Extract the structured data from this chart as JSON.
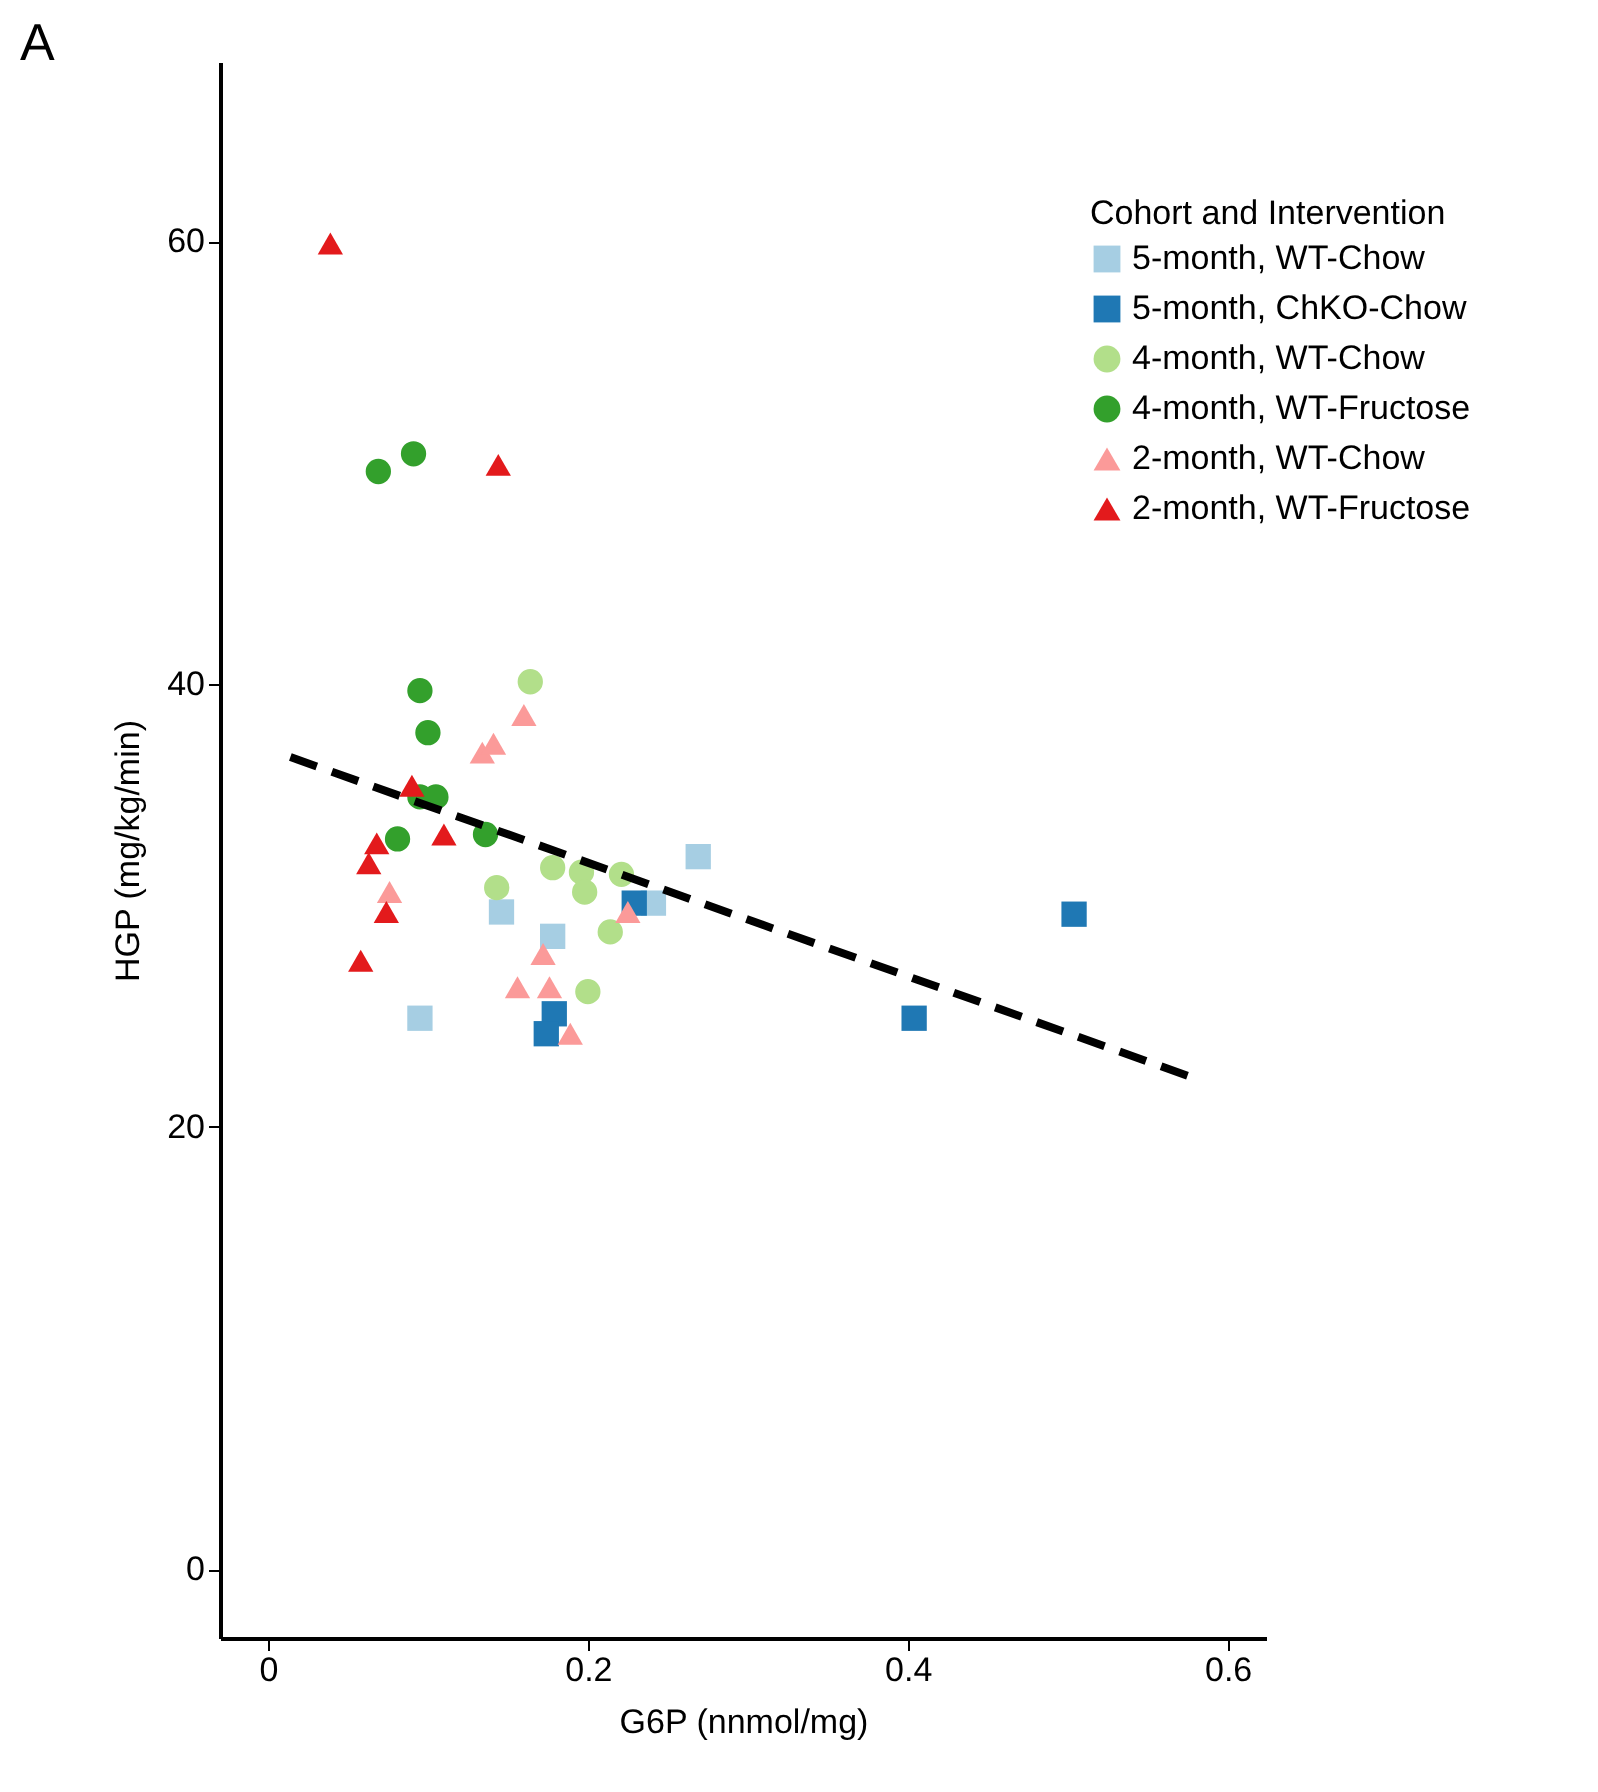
{
  "chart_data": {
    "type": "scatter",
    "xlabel": "G6P (nnmol/mg)",
    "ylabel": "HGP (mg/kg/min)",
    "legend_title": "Cohort and Intervention",
    "legend": "top right",
    "grid": false,
    "xlim": [
      -0.03,
      0.624
    ],
    "ylim": [
      -3.1,
      68.1
    ],
    "xticks": [
      0,
      0.2,
      0.4,
      0.6
    ],
    "yticks": [
      0,
      20,
      40,
      60
    ],
    "annotations": [
      "A"
    ],
    "series": [
      {
        "name": "5-month, WT-Chow",
        "color": "#a6cee3",
        "marker": "square",
        "x": [
          0.095,
          0.146,
          0.178,
          0.269,
          0.241
        ],
        "values": [
          24.9,
          29.7,
          28.6,
          32.2,
          30.1
        ]
      },
      {
        "name": "5-month, ChKO-Chow",
        "color": "#1f78b4",
        "marker": "square",
        "x": [
          0.504,
          0.404,
          0.229,
          0.179,
          0.174
        ],
        "values": [
          29.6,
          24.9,
          30.1,
          25.1,
          24.2
        ]
      },
      {
        "name": "4-month, WT-Chow",
        "color": "#b2df8a",
        "marker": "circle",
        "x": [
          0.164,
          0.143,
          0.178,
          0.196,
          0.198,
          0.221,
          0.214,
          0.2
        ],
        "values": [
          40.1,
          30.8,
          31.7,
          31.5,
          30.6,
          31.4,
          28.8,
          26.1
        ]
      },
      {
        "name": "4-month, WT-Fructose",
        "color": "#33a02c",
        "marker": "circle",
        "x": [
          0.069,
          0.091,
          0.095,
          0.1,
          0.095,
          0.105,
          0.081,
          0.136
        ],
        "values": [
          49.6,
          50.4,
          39.7,
          37.8,
          34.9,
          34.9,
          33.0,
          33.2
        ]
      },
      {
        "name": "2-month, WT-Chow",
        "color": "#fb9a99",
        "marker": "triangle",
        "x": [
          0.16,
          0.134,
          0.141,
          0.076,
          0.172,
          0.156,
          0.176,
          0.189,
          0.225
        ],
        "values": [
          38.6,
          36.9,
          37.3,
          30.6,
          27.8,
          26.3,
          26.3,
          24.2,
          29.7
        ]
      },
      {
        "name": "2-month, WT-Fructose",
        "color": "#e31a1c",
        "marker": "triangle",
        "x": [
          0.039,
          0.144,
          0.09,
          0.11,
          0.068,
          0.063,
          0.074,
          0.058
        ],
        "values": [
          59.9,
          49.9,
          35.4,
          33.2,
          32.8,
          31.9,
          29.7,
          27.5
        ]
      },
      {
        "type": "line",
        "color": "#000000",
        "line_style": "dashed",
        "x": [
          0.014,
          0.579
        ],
        "values": [
          36.7,
          22.2
        ]
      }
    ]
  }
}
